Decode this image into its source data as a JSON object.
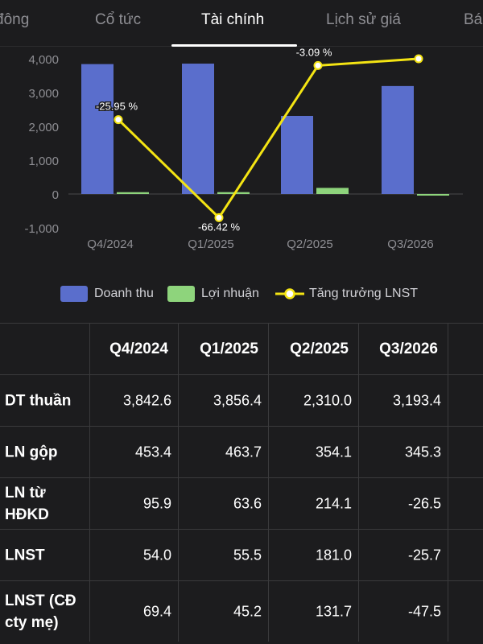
{
  "tabs": [
    {
      "label": "đông",
      "active": false
    },
    {
      "label": "Cổ tức",
      "active": false
    },
    {
      "label": "Tài chính",
      "active": true
    },
    {
      "label": "Lịch sử giá",
      "active": false
    },
    {
      "label": "Bá",
      "active": false
    }
  ],
  "colors": {
    "revenue": "#5a6ecc",
    "profit": "#8ed47c",
    "growth": "#f4e413",
    "background": "#1c1c1e",
    "grid": "#3a3a3c",
    "axis_text": "#8e8e93"
  },
  "chart_data": {
    "type": "bar",
    "categories": [
      "Q4/2024",
      "Q1/2025",
      "Q2/2025",
      "Q3/2026"
    ],
    "series": [
      {
        "name": "Doanh thu",
        "values": [
          3842.6,
          3856.4,
          2310.0,
          3193.4
        ]
      },
      {
        "name": "Lợi nhuận",
        "values": [
          54.0,
          55.5,
          181.0,
          -25.7
        ]
      },
      {
        "name": "Tăng trưởng LNST",
        "type": "line",
        "values": [
          2200,
          -700,
          3800,
          4000
        ],
        "labels": [
          "-25.95 %",
          "-66.42 %",
          "-3.09 %",
          ""
        ]
      }
    ],
    "y_ticks": [
      "4,000",
      "3,000",
      "2,000",
      "1,000",
      "0",
      "-1,000"
    ],
    "ylim": [
      -1000,
      4000
    ],
    "legend": "bottom"
  },
  "legend": {
    "revenue": "Doanh thu",
    "profit": "Lợi nhuận",
    "growth": "Tăng trưởng LNST"
  },
  "table": {
    "headers": [
      "",
      "Q4/2024",
      "Q1/2025",
      "Q2/2025",
      "Q3/2026"
    ],
    "rows": [
      {
        "label": "DT thuần",
        "values": [
          "3,842.6",
          "3,856.4",
          "2,310.0",
          "3,193.4"
        ]
      },
      {
        "label": "LN gộp",
        "values": [
          "453.4",
          "463.7",
          "354.1",
          "345.3"
        ]
      },
      {
        "label": "LN từ\nHĐKD",
        "values": [
          "95.9",
          "63.6",
          "214.1",
          "-26.5"
        ]
      },
      {
        "label": "LNST",
        "values": [
          "54.0",
          "55.5",
          "181.0",
          "-25.7"
        ]
      },
      {
        "label": "LNST (CĐ\ncty mẹ)",
        "values": [
          "69.4",
          "45.2",
          "131.7",
          "-47.5"
        ]
      }
    ]
  }
}
